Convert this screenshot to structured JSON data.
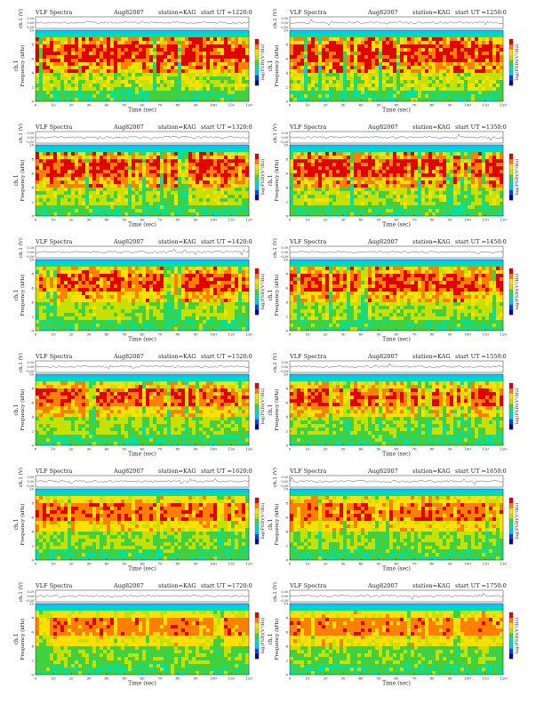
{
  "panels": [
    {
      "title": "VLF Spectra",
      "date": "Aug82007",
      "station": "station=KAG",
      "start": "start UT =1220:0"
    },
    {
      "title": "VLF Spectra",
      "date": "Aug82007",
      "station": "station=KAG",
      "start": "start UT =1250:0"
    },
    {
      "title": "VLF Spectra",
      "date": "Aug82007",
      "station": "station=KAG",
      "start": "start UT =1320:0"
    },
    {
      "title": "VLF Spectra",
      "date": "Aug82007",
      "station": "station=KAG",
      "start": "start UT =1350:0"
    },
    {
      "title": "VLF Spectra",
      "date": "Aug82007",
      "station": "station=KAG",
      "start": "start UT =1420:0"
    },
    {
      "title": "VLF Spectra",
      "date": "Aug82007",
      "station": "station=KAG",
      "start": "start UT =1450:0"
    },
    {
      "title": "VLF Spectra",
      "date": "Aug82007",
      "station": "station=KAG",
      "start": "start UT =1520:0"
    },
    {
      "title": "VLF Spectra",
      "date": "Aug82007",
      "station": "station=KAG",
      "start": "start UT =1550:0"
    },
    {
      "title": "VLF Spectra",
      "date": "Aug82007",
      "station": "station=KAG",
      "start": "start UT =1620:0"
    },
    {
      "title": "VLF Spectra",
      "date": "Aug82007",
      "station": "station=KAG",
      "start": "start UT =1650:0"
    },
    {
      "title": "VLF Spectra",
      "date": "Aug82007",
      "station": "station=KAG",
      "start": "start UT =1720:0"
    },
    {
      "title": "VLF Spectra",
      "date": "Aug82007",
      "station": "station=KAG",
      "start": "start UT =1750:0"
    }
  ],
  "labels": {
    "waveform_ylabel": "ch.1 (V)",
    "spec_ylabel_channel": "ch.1",
    "spec_ylabel": "Frequency (kHz)",
    "xlabel": "Time (sec)",
    "colorbar_label": "log(PSD)(V²/Hz)"
  },
  "chart_data": {
    "type": "heatmap",
    "panel_count": 12,
    "x_ticks": [
      0,
      10,
      20,
      30,
      40,
      50,
      60,
      70,
      80,
      90,
      100,
      110,
      120
    ],
    "xlim": [
      0,
      120
    ],
    "y_ticks": [
      0,
      2,
      4,
      6,
      8,
      10
    ],
    "ylim": [
      0,
      10
    ],
    "waveform_ticks": [
      "0.30",
      "0.00",
      "-0.30"
    ],
    "waveform_ylim": [
      -0.3,
      0.3
    ],
    "colormap": [
      "#0000a0",
      "#0040ff",
      "#00c8ff",
      "#00e0a0",
      "#40d040",
      "#c8e000",
      "#ffe000",
      "#ff8000",
      "#e00000"
    ],
    "grid": false
  }
}
